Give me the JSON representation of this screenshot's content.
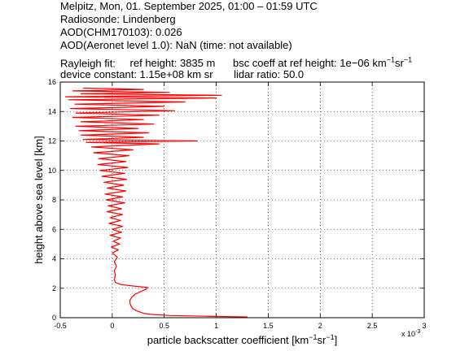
{
  "header": {
    "line1": "Melpitz, Mon, 01. September 2025, 01:00 – 01:59 UTC",
    "line2": "Radiosonde: Lindenberg",
    "line3": "AOD(CHM170103): 0.026",
    "line4": "AOD(Aeronet level 1.0): NaN   (time: not available)",
    "rayleigh_label": "Rayleigh fit:",
    "ref_height": "ref height: 3835 m",
    "bsc_coeff_prefix": "bsc coeff at ref height: 1e−06 km",
    "bsc_coeff_sup1": "−1",
    "bsc_coeff_mid": "sr",
    "bsc_coeff_sup2": "−1",
    "device_constant": "device constant: 1.15e+08 km sr",
    "lidar_ratio": "lidar ratio: 50.0"
  },
  "chart_data": {
    "type": "line",
    "xlabel": "particle backscatter coefficient [km⁻¹sr⁻¹]",
    "xlabel_main": "particle backscatter coefficient [km",
    "xlabel_sup1": "−1",
    "xlabel_mid": "sr",
    "xlabel_sup2": "−1",
    "xlabel_end": "]",
    "x_multiplier": "x 10",
    "x_multiplier_exp": "-3",
    "ylabel": "height above sea level [km]",
    "xlim": [
      -0.5,
      3
    ],
    "ylim": [
      0,
      16
    ],
    "xticks": [
      "-0.5",
      "0",
      "0.5",
      "1",
      "1.5",
      "2",
      "2.5",
      "3"
    ],
    "yticks": [
      "0",
      "2",
      "4",
      "6",
      "8",
      "10",
      "12",
      "14",
      "16"
    ],
    "grid": true,
    "line_color": "#ff0000",
    "series": [
      {
        "values_note_units": "x in 1e-3 km^-1 sr^-1, y in km",
        "points": [
          [
            1.3,
            0.05
          ],
          [
            0.9,
            0.1
          ],
          [
            0.55,
            0.15
          ],
          [
            0.38,
            0.22
          ],
          [
            0.3,
            0.3
          ],
          [
            0.24,
            0.45
          ],
          [
            0.2,
            0.6
          ],
          [
            0.18,
            0.8
          ],
          [
            0.17,
            1.0
          ],
          [
            0.17,
            1.2
          ],
          [
            0.19,
            1.4
          ],
          [
            0.22,
            1.6
          ],
          [
            0.28,
            1.8
          ],
          [
            0.33,
            1.95
          ],
          [
            0.34,
            2.05
          ],
          [
            0.2,
            2.15
          ],
          [
            0.08,
            2.25
          ],
          [
            0.03,
            2.4
          ],
          [
            0.02,
            2.6
          ],
          [
            0.03,
            2.9
          ],
          [
            0.02,
            3.2
          ],
          [
            0.04,
            3.5
          ],
          [
            0.02,
            3.8
          ],
          [
            0.05,
            4.1
          ],
          [
            0.0,
            4.4
          ],
          [
            0.06,
            4.6
          ],
          [
            -0.01,
            4.8
          ],
          [
            0.07,
            5.0
          ],
          [
            0.01,
            5.2
          ],
          [
            0.08,
            5.4
          ],
          [
            -0.02,
            5.6
          ],
          [
            0.09,
            5.8
          ],
          [
            0.0,
            6.0
          ],
          [
            0.1,
            6.2
          ],
          [
            -0.03,
            6.4
          ],
          [
            0.08,
            6.6
          ],
          [
            -0.02,
            6.8
          ],
          [
            0.1,
            7.0
          ],
          [
            -0.05,
            7.2
          ],
          [
            0.09,
            7.4
          ],
          [
            -0.04,
            7.6
          ],
          [
            0.12,
            7.8
          ],
          [
            -0.06,
            8.0
          ],
          [
            0.1,
            8.2
          ],
          [
            -0.07,
            8.4
          ],
          [
            0.13,
            8.6
          ],
          [
            -0.05,
            8.8
          ],
          [
            0.11,
            9.0
          ],
          [
            -0.08,
            9.2
          ],
          [
            0.14,
            9.4
          ],
          [
            -0.1,
            9.6
          ],
          [
            0.12,
            9.8
          ],
          [
            -0.12,
            10.0
          ],
          [
            0.15,
            10.2
          ],
          [
            -0.14,
            10.4
          ],
          [
            0.13,
            10.6
          ],
          [
            -0.13,
            10.8
          ],
          [
            0.16,
            11.0
          ],
          [
            -0.18,
            11.2
          ],
          [
            0.2,
            11.4
          ],
          [
            -0.2,
            11.6
          ],
          [
            0.45,
            11.8
          ],
          [
            -0.25,
            11.9
          ],
          [
            0.82,
            12.0
          ],
          [
            -0.28,
            12.1
          ],
          [
            0.3,
            12.25
          ],
          [
            -0.3,
            12.4
          ],
          [
            0.35,
            12.55
          ],
          [
            -0.32,
            12.7
          ],
          [
            0.25,
            12.85
          ],
          [
            -0.35,
            13.0
          ],
          [
            0.4,
            13.15
          ],
          [
            -0.3,
            13.3
          ],
          [
            0.3,
            13.45
          ],
          [
            -0.38,
            13.6
          ],
          [
            0.45,
            13.75
          ],
          [
            -0.35,
            13.9
          ],
          [
            0.6,
            14.05
          ],
          [
            -0.4,
            14.2
          ],
          [
            0.5,
            14.35
          ],
          [
            -0.36,
            14.5
          ],
          [
            0.7,
            14.65
          ],
          [
            -0.42,
            14.8
          ],
          [
            1.0,
            14.92
          ],
          [
            -0.45,
            15.0
          ],
          [
            1.05,
            15.1
          ],
          [
            -0.3,
            15.2
          ],
          [
            0.55,
            15.3
          ],
          [
            -0.38,
            15.4
          ],
          [
            0.3,
            15.5
          ],
          [
            -0.28,
            15.6
          ]
        ]
      }
    ]
  }
}
